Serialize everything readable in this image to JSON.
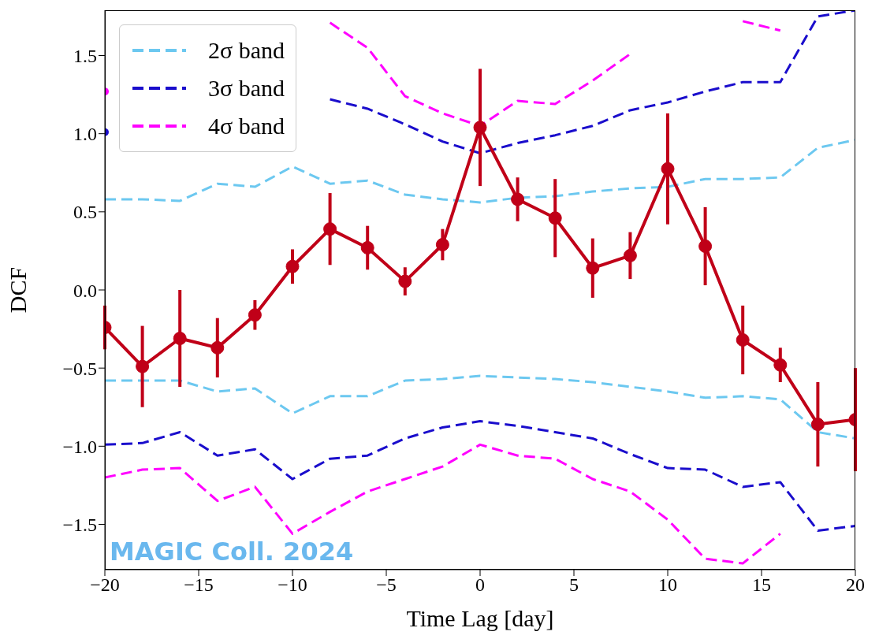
{
  "chart_data": {
    "type": "line",
    "xlabel": "Time Lag [day]",
    "ylabel": "DCF",
    "x": [
      -20,
      -18,
      -16,
      -14,
      -12,
      -10,
      -8,
      -6,
      -4,
      -2,
      0,
      2,
      4,
      6,
      8,
      10,
      12,
      14,
      16,
      18,
      20
    ],
    "xlim": [
      -20,
      20
    ],
    "xticks": [
      -20,
      -15,
      -10,
      -5,
      0,
      5,
      10,
      15,
      20
    ],
    "ylim": [
      -1.79,
      1.79
    ],
    "yticks": [
      -1.5,
      {
        "value": -1,
        "label": "−1.0"
      },
      -0.5,
      {
        "value": 0,
        "label": "0.0"
      },
      0.5,
      {
        "value": 1,
        "label": "1.0"
      },
      1.5
    ],
    "legend": "top left",
    "marker": "none",
    "series": [
      {
        "name": "2σ band",
        "color": "#6cc8f0",
        "line_style": "dashed",
        "values": [
          0.58,
          0.58,
          0.57,
          0.68,
          0.66,
          0.79,
          0.68,
          0.7,
          0.61,
          0.58,
          0.56,
          0.59,
          0.6,
          0.63,
          0.65,
          0.66,
          0.71,
          0.71,
          0.72,
          0.91,
          0.96
        ]
      },
      {
        "color": "#6cc8f0",
        "line_style": "dashed",
        "values": [
          -0.58,
          -0.58,
          -0.58,
          -0.65,
          -0.63,
          -0.79,
          -0.68,
          -0.68,
          -0.58,
          -0.57,
          -0.55,
          -0.56,
          -0.57,
          -0.59,
          -0.62,
          -0.65,
          -0.69,
          -0.68,
          -0.7,
          -0.91,
          -0.95
        ]
      },
      {
        "name": "3σ band",
        "color": "#1a0dcc",
        "line_style": "dashed",
        "values": [
          1.01,
          null,
          null,
          null,
          null,
          null,
          1.22,
          1.16,
          1.06,
          0.95,
          0.875,
          0.94,
          0.99,
          1.05,
          1.15,
          1.2,
          1.27,
          1.33,
          1.33,
          1.75,
          1.79
        ]
      },
      {
        "color": "#1a0dcc",
        "line_style": "dashed",
        "values": [
          -0.99,
          -0.98,
          -0.91,
          -1.06,
          -1.02,
          -1.21,
          -1.08,
          -1.06,
          -0.95,
          -0.88,
          -0.84,
          -0.87,
          -0.91,
          -0.95,
          -1.05,
          -1.14,
          -1.15,
          -1.26,
          -1.23,
          -1.54,
          -1.51
        ]
      },
      {
        "name": "4σ band",
        "color": "#ff00ff",
        "line_style": "dashed",
        "values": [
          1.27,
          null,
          null,
          null,
          null,
          null,
          1.71,
          1.55,
          1.24,
          1.13,
          1.05,
          1.21,
          1.19,
          1.34,
          1.51,
          null,
          null,
          1.72,
          1.66,
          null,
          null
        ]
      },
      {
        "color": "#ff00ff",
        "line_style": "dashed",
        "values": [
          -1.2,
          -1.15,
          -1.14,
          -1.35,
          -1.26,
          -1.56,
          -1.42,
          -1.29,
          -1.21,
          -1.13,
          -0.99,
          -1.06,
          -1.08,
          -1.21,
          -1.29,
          -1.47,
          -1.72,
          -1.75,
          -1.56,
          null,
          null
        ]
      },
      {
        "color": "#c00018",
        "line_style": "solid",
        "marker": "circle",
        "values": [
          -0.24,
          -0.49,
          -0.31,
          -0.37,
          -0.16,
          0.15,
          0.39,
          0.27,
          0.055,
          0.29,
          1.04,
          0.58,
          0.46,
          0.14,
          0.22,
          0.775,
          0.28,
          -0.32,
          -0.48,
          -0.86,
          -0.83
        ],
        "errors": [
          0.14,
          0.26,
          0.31,
          0.19,
          0.095,
          0.11,
          0.23,
          0.14,
          0.09,
          0.1,
          0.375,
          0.14,
          0.25,
          0.19,
          0.15,
          0.355,
          0.25,
          0.22,
          0.11,
          0.27,
          0.33
        ]
      }
    ],
    "annotations": [
      "MAGIC Coll. 2024"
    ]
  }
}
